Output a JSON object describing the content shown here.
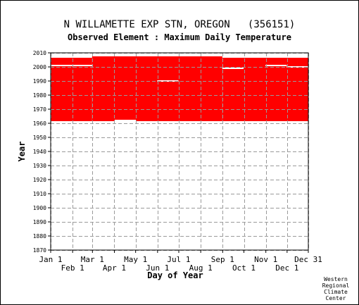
{
  "header": {
    "title": "N WILLAMETTE EXP STN, OREGON   (356151)",
    "subtitle": "Observed Element : Maximum Daily Temperature"
  },
  "credit": [
    "Western",
    "Regional",
    "Climate",
    "Center"
  ],
  "colors": {
    "data": "#ff0000",
    "grid": "#9a9a9a",
    "background": "#ffffff",
    "axis": "#000000"
  },
  "chart_data": {
    "type": "heatmap",
    "xlabel": "Day of Year",
    "ylabel": "Year",
    "xlim": [
      1,
      365
    ],
    "ylim": [
      1870,
      2010
    ],
    "yticks": [
      1870,
      1880,
      1890,
      1900,
      1910,
      1920,
      1930,
      1940,
      1950,
      1960,
      1970,
      1980,
      1990,
      2000,
      2010
    ],
    "xticks_top_row": [
      {
        "label": "Jan 1",
        "day": 1
      },
      {
        "label": "Mar 1",
        "day": 60
      },
      {
        "label": "May 1",
        "day": 121
      },
      {
        "label": "Jul 1",
        "day": 182
      },
      {
        "label": "Sep 1",
        "day": 244
      },
      {
        "label": "Nov 1",
        "day": 305
      },
      {
        "label": "Dec 31",
        "day": 365
      }
    ],
    "xticks_bottom_row": [
      {
        "label": "Feb 1",
        "day": 32
      },
      {
        "label": "Apr 1",
        "day": 91
      },
      {
        "label": "Jun 1",
        "day": 152
      },
      {
        "label": "Aug 1",
        "day": 213
      },
      {
        "label": "Oct 1",
        "day": 274
      },
      {
        "label": "Dec 1",
        "day": 335
      }
    ],
    "grid": true,
    "records": [
      {
        "day_start": 1,
        "day_end": 59,
        "year_start": 1962,
        "year_end": 2006
      },
      {
        "day_start": 60,
        "day_end": 243,
        "year_start": 1962,
        "year_end": 2007
      },
      {
        "day_start": 244,
        "day_end": 365,
        "year_start": 1962,
        "year_end": 2006
      }
    ],
    "missing": [
      {
        "day_start": 1,
        "day_end": 59,
        "year": 2001
      },
      {
        "day_start": 92,
        "day_end": 121,
        "year": 1962
      },
      {
        "day_start": 152,
        "day_end": 181,
        "year": 1990
      },
      {
        "day_start": 244,
        "day_end": 273,
        "year": 1999
      },
      {
        "day_start": 305,
        "day_end": 334,
        "year": 2001
      },
      {
        "day_start": 335,
        "day_end": 365,
        "year": 2000
      }
    ]
  }
}
